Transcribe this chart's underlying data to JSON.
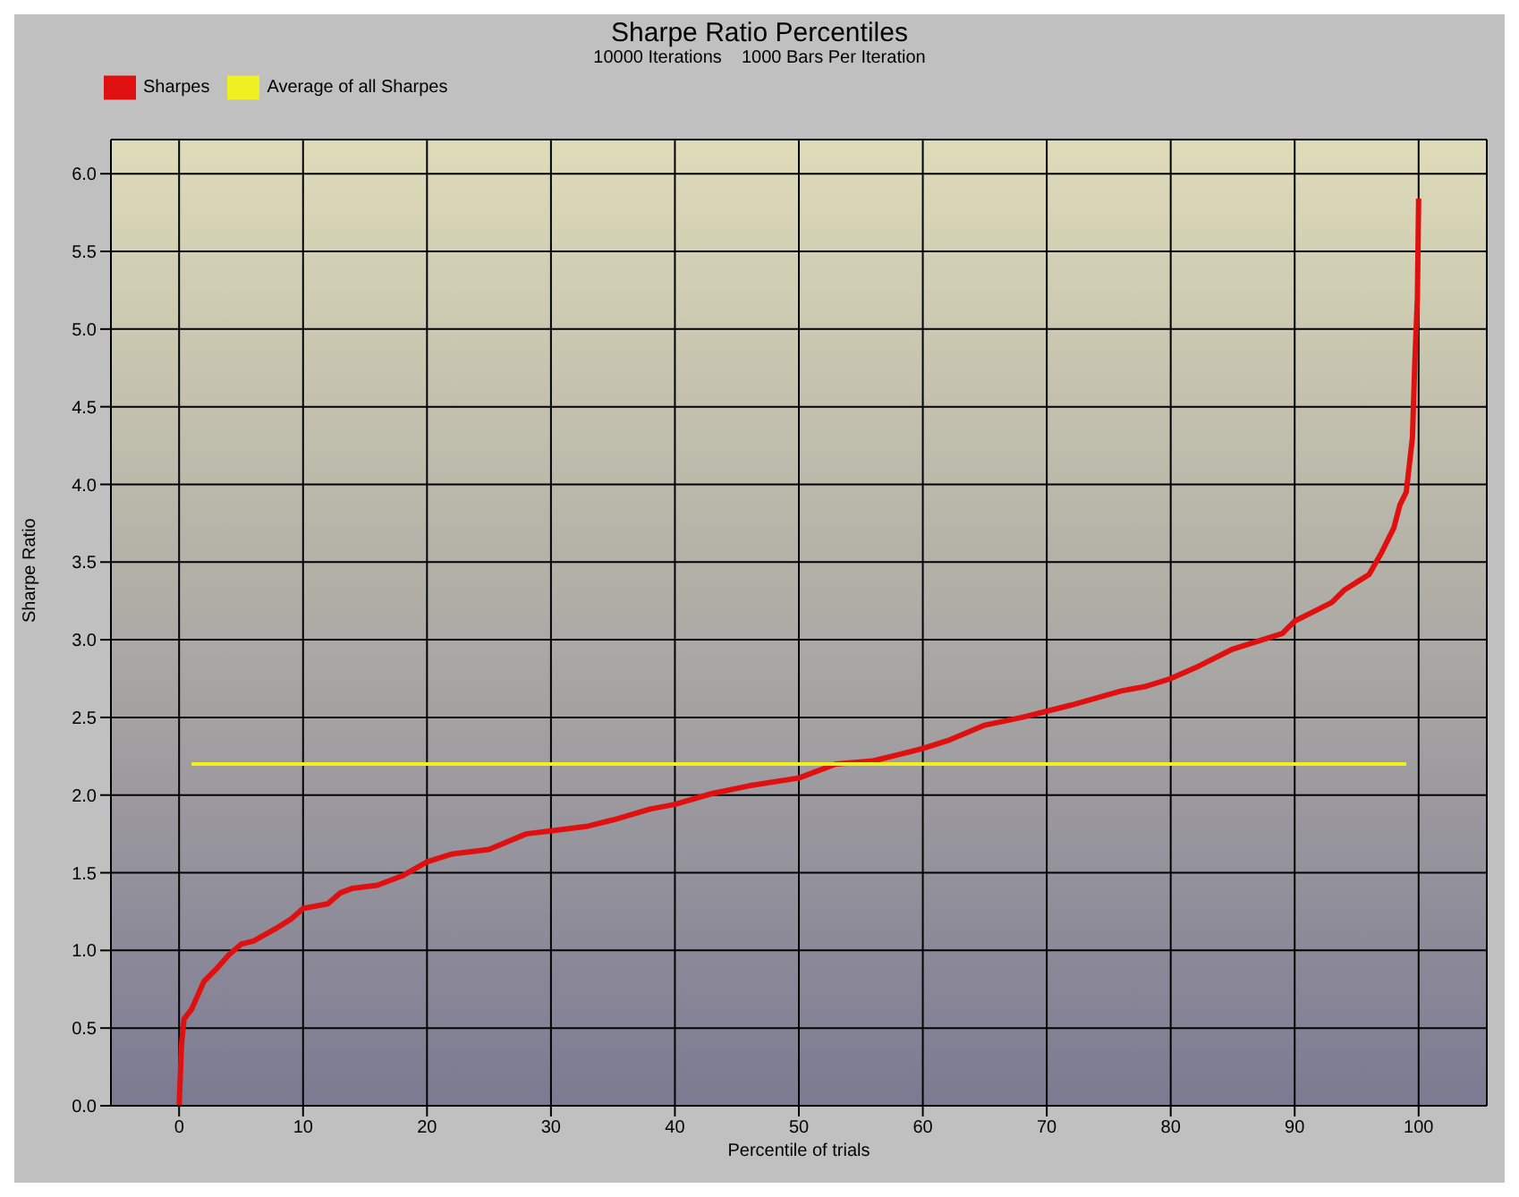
{
  "chart_data": {
    "type": "line",
    "title": "Sharpe Ratio Percentiles",
    "subtitle": "10000 Iterations    1000 Bars Per Iteration",
    "xlabel": "Percentile of trials",
    "ylabel": "Sharpe Ratio",
    "xlim": [
      -5.5,
      105.5
    ],
    "xticks": [
      0,
      10,
      20,
      30,
      40,
      50,
      60,
      70,
      80,
      90,
      100
    ],
    "ylim": [
      0,
      6.22
    ],
    "yticks": [
      {
        "value": 0,
        "label": "0.0"
      },
      0.5,
      {
        "value": 1,
        "label": "1.0"
      },
      1.5,
      {
        "value": 2,
        "label": "2.0"
      },
      2.5,
      {
        "value": 3,
        "label": "3.0"
      },
      3.5,
      {
        "value": 4,
        "label": "4.0"
      },
      4.5,
      {
        "value": 5,
        "label": "5.0"
      },
      5.5,
      {
        "value": 6,
        "label": "6.0"
      }
    ],
    "grid": true,
    "legend": "top left",
    "marker": "none",
    "line_style": "solid",
    "series": [
      {
        "name": "Sharpes",
        "color": "#e01010",
        "x": [
          0,
          0.2,
          0.4,
          1,
          2,
          3,
          4,
          5,
          6,
          8,
          9,
          10,
          12,
          13,
          14,
          16,
          18,
          20,
          22,
          24,
          25,
          28,
          30,
          33,
          35,
          38,
          40,
          43,
          46,
          50,
          53,
          56,
          58,
          60,
          62,
          65,
          68,
          70,
          72,
          76,
          78,
          80,
          82,
          85,
          87,
          89,
          90,
          92,
          93,
          94,
          96,
          97,
          98,
          98.5,
          99,
          99.5,
          99.7,
          99.9,
          100
        ],
        "values": [
          0,
          0.4,
          0.56,
          0.62,
          0.8,
          0.88,
          0.97,
          1.04,
          1.06,
          1.15,
          1.2,
          1.27,
          1.3,
          1.37,
          1.4,
          1.42,
          1.48,
          1.57,
          1.62,
          1.64,
          1.65,
          1.75,
          1.77,
          1.8,
          1.84,
          1.91,
          1.94,
          2.01,
          2.06,
          2.11,
          2.2,
          2.22,
          2.26,
          2.3,
          2.35,
          2.45,
          2.5,
          2.54,
          2.58,
          2.67,
          2.7,
          2.75,
          2.82,
          2.94,
          2.99,
          3.04,
          3.12,
          3.2,
          3.24,
          3.32,
          3.42,
          3.56,
          3.72,
          3.87,
          3.95,
          4.3,
          4.8,
          5.2,
          5.84
        ]
      },
      {
        "name": "Average of all Sharpes",
        "color": "#f0f020",
        "x": [
          1,
          99
        ],
        "values": [
          2.2,
          2.2
        ]
      }
    ]
  }
}
